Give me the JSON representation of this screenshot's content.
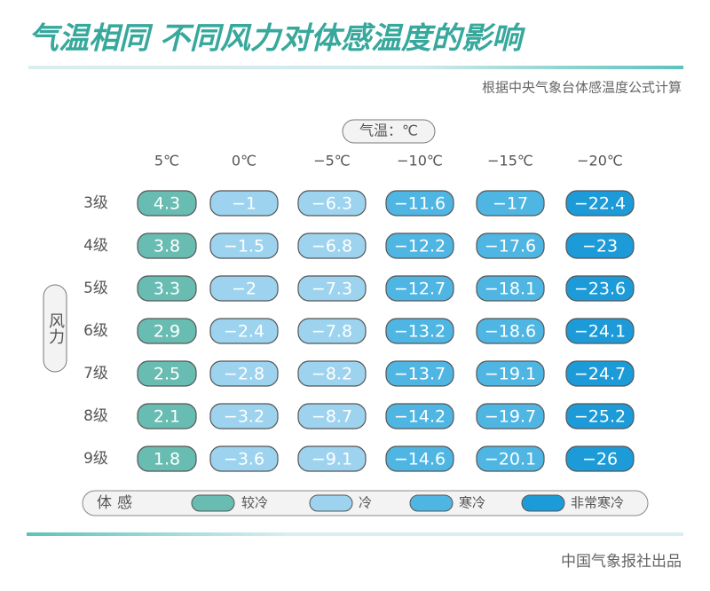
{
  "title": "气温相同 不同风力对体感温度的影响",
  "subtitle": "根据中央气象台体感温度公式计算",
  "column_header": "气温：℃",
  "row_header": "风力",
  "columns": [
    {
      "label": "5℃",
      "level": 0
    },
    {
      "label": "0℃",
      "level": 1
    },
    {
      "label": "−5℃",
      "level": 1
    },
    {
      "label": "−10℃",
      "level": 2
    },
    {
      "label": "−15℃",
      "level": 2
    },
    {
      "label": "−20℃",
      "level": 3
    }
  ],
  "rows": [
    {
      "label": "3级",
      "values": [
        4.3,
        -1,
        -6.3,
        -11.6,
        -17,
        -22.4
      ],
      "value_labels": [
        "4.3",
        "−1",
        "−6.3",
        "−11.6",
        "−17",
        "−22.4"
      ]
    },
    {
      "label": "4级",
      "values": [
        3.8,
        -1.5,
        -6.8,
        -12.2,
        -17.6,
        -23
      ],
      "value_labels": [
        "3.8",
        "−1.5",
        "−6.8",
        "−12.2",
        "−17.6",
        "−23"
      ]
    },
    {
      "label": "5级",
      "values": [
        3.3,
        -2,
        -7.3,
        -12.7,
        -18.1,
        -23.6
      ],
      "value_labels": [
        "3.3",
        "−2",
        "−7.3",
        "−12.7",
        "−18.1",
        "−23.6"
      ]
    },
    {
      "label": "6级",
      "values": [
        2.9,
        -2.4,
        -7.8,
        -13.2,
        -18.6,
        -24.1
      ],
      "value_labels": [
        "2.9",
        "−2.4",
        "−7.8",
        "−13.2",
        "−18.6",
        "−24.1"
      ]
    },
    {
      "label": "7级",
      "values": [
        2.5,
        -2.8,
        -8.2,
        -13.7,
        -19.1,
        -24.7
      ],
      "value_labels": [
        "2.5",
        "−2.8",
        "−8.2",
        "−13.7",
        "−19.1",
        "−24.7"
      ]
    },
    {
      "label": "8级",
      "values": [
        2.1,
        -3.2,
        -8.7,
        -14.2,
        -19.7,
        -25.2
      ],
      "value_labels": [
        "2.1",
        "−3.2",
        "−8.7",
        "−14.2",
        "−19.7",
        "−25.2"
      ]
    },
    {
      "label": "9级",
      "values": [
        1.8,
        -3.6,
        -9.1,
        -14.6,
        -20.1,
        -26
      ],
      "value_labels": [
        "1.8",
        "−3.6",
        "−9.1",
        "−14.6",
        "−20.1",
        "−26"
      ]
    }
  ],
  "legend": {
    "title": "体感",
    "items": [
      {
        "label": "较冷",
        "color": "#69bcb2"
      },
      {
        "label": "冷",
        "color": "#9dd3ee"
      },
      {
        "label": "寒冷",
        "color": "#4fb6e3"
      },
      {
        "label": "非常寒冷",
        "color": "#1c9bd8"
      }
    ]
  },
  "footer": "中国气象报社出品"
}
